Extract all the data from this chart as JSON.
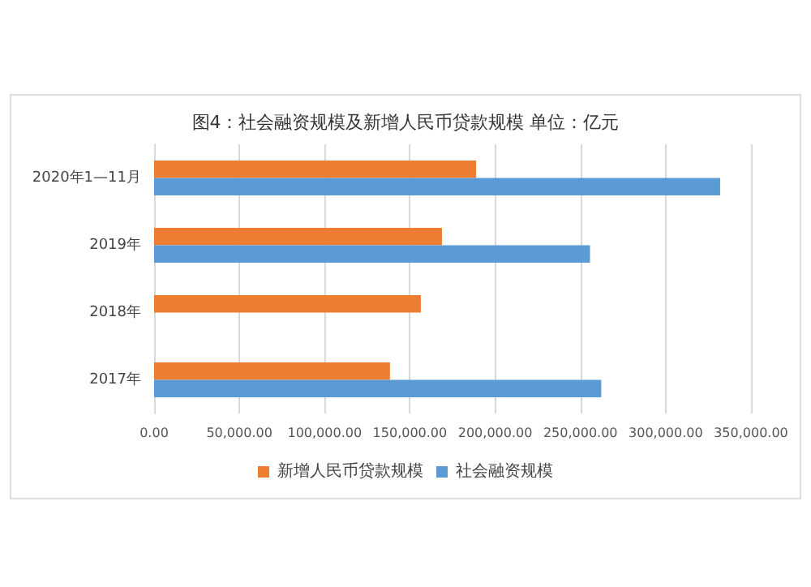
{
  "chart_data": {
    "type": "bar",
    "orientation": "horizontal",
    "title": "图4：社会融资规模及新增人民币贷款规模 单位：亿元",
    "categories": [
      "2020年1—11月",
      "2019年",
      "2018年",
      "2017年"
    ],
    "series": [
      {
        "name": "新增人民币贷款规模",
        "color": "#ed7d31",
        "values": [
          188800,
          168800,
          156400,
          138300
        ]
      },
      {
        "name": "社会融资规模",
        "color": "#5b9bd5",
        "values": [
          331900,
          255600,
          null,
          262200
        ]
      }
    ],
    "xlim": [
      0,
      350000
    ],
    "xticks": [
      {
        "value": 0,
        "label": "0.00"
      },
      {
        "value": 50000,
        "label": "50,000.00"
      },
      {
        "value": 100000,
        "label": "100,000.00"
      },
      {
        "value": 150000,
        "label": "150,000.00"
      },
      {
        "value": 200000,
        "label": "200,000.00"
      },
      {
        "value": 250000,
        "label": "250,000.00"
      },
      {
        "value": 300000,
        "label": "300,000.00"
      },
      {
        "value": 350000,
        "label": "350,000.00"
      }
    ],
    "grid": "x",
    "legend": "bottom"
  }
}
